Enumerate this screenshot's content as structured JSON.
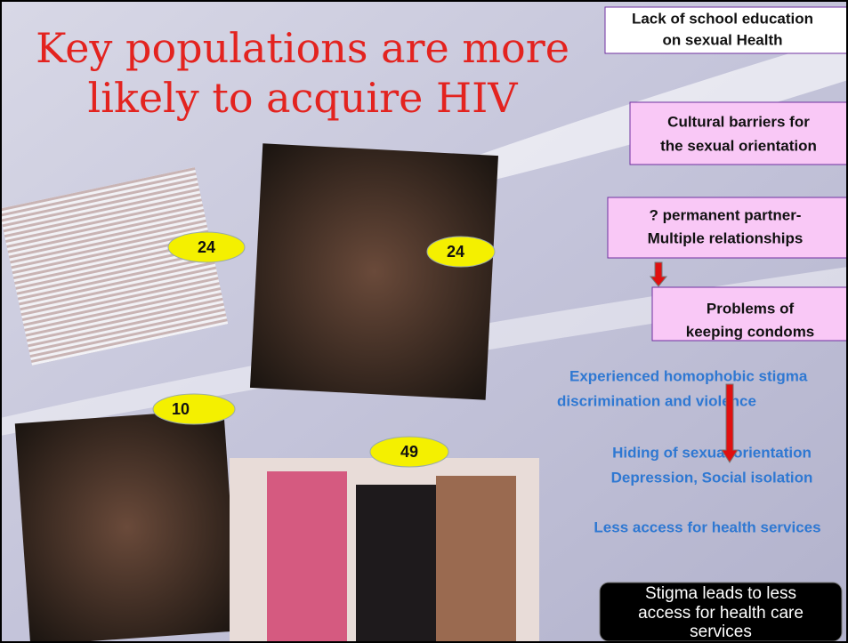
{
  "title": {
    "lines": [
      "Key populations are more",
      "likely to acquire HIV"
    ]
  },
  "badges": [
    24,
    24,
    10,
    49
  ],
  "boxes": [
    {
      "lines": [
        "Lack of school education",
        "on sexual Health"
      ]
    },
    {
      "lines": [
        "Cultural barriers for",
        "the sexual orientation"
      ]
    },
    {
      "lines": [
        "? permanent partner-",
        "Multiple relationships"
      ]
    },
    {
      "lines": [
        "Problems of",
        "keeping condoms"
      ]
    }
  ],
  "notes": [
    {
      "lines": [
        "Experienced homophobic stigma",
        "discrimination and violence"
      ]
    },
    {
      "lines": [
        "Hiding of sexual orientation",
        "Depression, Social isolation"
      ]
    },
    {
      "lines": [
        "Less access for health services"
      ]
    }
  ],
  "summary": {
    "lines": [
      "Stigma leads to less",
      "access for health care",
      "services"
    ]
  }
}
